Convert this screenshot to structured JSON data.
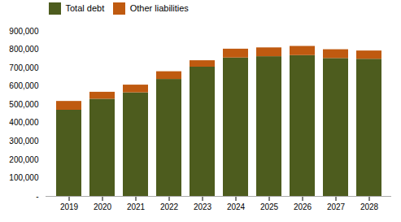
{
  "chart_data": {
    "type": "bar",
    "stacked": true,
    "categories": [
      "2019",
      "2020",
      "2021",
      "2022",
      "2023",
      "2024",
      "2025",
      "2026",
      "2027",
      "2028"
    ],
    "series": [
      {
        "name": "Total debt",
        "color": "#4d5c1e",
        "values": [
          470000,
          530000,
          565000,
          638000,
          705000,
          755000,
          762000,
          768000,
          752000,
          748000
        ]
      },
      {
        "name": "Other liabilities",
        "color": "#bf5a10",
        "values": [
          48000,
          38000,
          42000,
          42000,
          35000,
          48000,
          48000,
          50000,
          48000,
          45000
        ]
      }
    ],
    "ylim": [
      0,
      900000
    ],
    "yticks": [
      {
        "value": 0,
        "label": "-"
      },
      {
        "value": 100000,
        "label": "100,000"
      },
      {
        "value": 200000,
        "label": "200,000"
      },
      {
        "value": 300000,
        "label": "300,000"
      },
      {
        "value": 400000,
        "label": "400,000"
      },
      {
        "value": 500000,
        "label": "500,000"
      },
      {
        "value": 600000,
        "label": "600,000"
      },
      {
        "value": 700000,
        "label": "700,000"
      },
      {
        "value": 800000,
        "label": "800,000"
      },
      {
        "value": 900000,
        "label": "900,000"
      }
    ],
    "grid": false,
    "legend": "upper left"
  }
}
